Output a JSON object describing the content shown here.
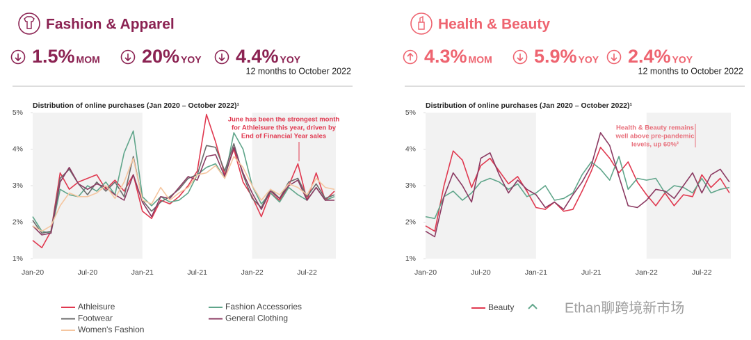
{
  "panels": [
    {
      "title": "Fashion & Apparel",
      "color": "#8b2252",
      "icon": "shirt",
      "metrics": [
        {
          "direction": "down",
          "value": "1.5%",
          "unit": "MOM"
        },
        {
          "direction": "down",
          "value": "20%",
          "unit": "YOY"
        },
        {
          "direction": "down",
          "value": "4.4%",
          "unit": "YOY"
        }
      ],
      "period": "12 months to October 2022"
    },
    {
      "title": "Health & Beauty",
      "color": "#ee6470",
      "icon": "lipstick",
      "metrics": [
        {
          "direction": "up",
          "value": "4.3%",
          "unit": "MOM"
        },
        {
          "direction": "down",
          "value": "5.9%",
          "unit": "YOY"
        },
        {
          "direction": "down",
          "value": "2.4%",
          "unit": "YOY"
        }
      ],
      "period": "12 months to October 2022"
    }
  ],
  "chart_data": [
    {
      "type": "line",
      "title": "Distribution of online purchases (Jan 2020 – October 2022)¹",
      "annotation": {
        "lines": [
          "June has been the strongest month",
          "for Athleisure this year, driven by",
          "End of Financial Year sales"
        ],
        "color": "#e0384f"
      },
      "categories": [
        "Jan-20",
        null,
        null,
        null,
        null,
        null,
        "Jul-20",
        null,
        null,
        null,
        null,
        null,
        "Jan-21",
        null,
        null,
        null,
        null,
        null,
        "Jul-21",
        null,
        null,
        null,
        null,
        null,
        "Jan-22",
        null,
        null,
        null,
        null,
        null,
        "Jul-22",
        null,
        null,
        null
      ],
      "ylim": [
        1,
        5
      ],
      "yticks": [
        {
          "value": 1,
          "label": "1%"
        },
        {
          "value": 2,
          "label": "2%"
        },
        {
          "value": 3,
          "label": "3%"
        },
        {
          "value": 4,
          "label": "4%"
        },
        {
          "value": 5,
          "label": "5%"
        }
      ],
      "series": [
        {
          "name": "Athleisure",
          "color": "#e0384f",
          "values": [
            1.5,
            1.3,
            1.75,
            3.35,
            2.9,
            3.1,
            3.2,
            3.3,
            2.9,
            3.15,
            2.85,
            3.3,
            2.3,
            2.1,
            2.6,
            2.5,
            2.7,
            3.0,
            3.4,
            4.95,
            4.2,
            3.3,
            4.0,
            3.1,
            2.7,
            2.15,
            2.8,
            2.6,
            3.0,
            3.6,
            2.6,
            3.35,
            2.6,
            2.85
          ]
        },
        {
          "name": "Fashion Accessories",
          "color": "#5fa58a",
          "values": [
            2.15,
            1.75,
            1.7,
            2.9,
            2.75,
            2.7,
            3.0,
            2.85,
            3.1,
            2.75,
            3.9,
            4.5,
            2.7,
            2.45,
            2.7,
            2.55,
            2.6,
            2.8,
            3.3,
            3.5,
            3.6,
            3.2,
            4.45,
            4.0,
            3.0,
            2.5,
            2.8,
            2.55,
            2.95,
            2.75,
            2.6,
            2.95,
            2.6,
            2.7
          ]
        },
        {
          "name": "Footwear",
          "color": "#6b6b6b",
          "values": [
            2.05,
            1.7,
            1.75,
            3.2,
            3.45,
            3.05,
            2.75,
            3.1,
            2.85,
            3.1,
            2.7,
            3.8,
            2.6,
            2.3,
            2.55,
            2.7,
            2.9,
            3.2,
            3.3,
            4.1,
            4.05,
            3.4,
            4.15,
            3.3,
            2.65,
            2.4,
            2.9,
            2.65,
            3.1,
            3.2,
            2.7,
            3.05,
            2.65,
            2.75
          ]
        },
        {
          "name": "General Clothing",
          "color": "#8b3a62",
          "values": [
            1.9,
            1.65,
            1.7,
            3.1,
            3.5,
            3.05,
            2.9,
            3.05,
            2.95,
            2.75,
            2.6,
            3.3,
            2.55,
            2.15,
            2.7,
            2.65,
            2.95,
            3.25,
            3.15,
            3.8,
            3.85,
            3.25,
            4.05,
            3.35,
            2.8,
            2.35,
            2.85,
            2.65,
            3.0,
            3.15,
            2.6,
            2.95,
            2.6,
            2.6
          ]
        },
        {
          "name": "Women's Fashion",
          "color": "#f5c6a0",
          "values": [
            1.9,
            1.75,
            1.9,
            2.45,
            2.8,
            2.7,
            2.7,
            2.8,
            3.0,
            2.65,
            3.1,
            3.75,
            2.6,
            2.5,
            2.95,
            2.6,
            2.8,
            2.95,
            3.3,
            3.35,
            3.55,
            3.2,
            3.8,
            3.5,
            3.0,
            2.6,
            2.9,
            2.75,
            3.05,
            2.95,
            2.75,
            3.2,
            2.95,
            2.9
          ]
        }
      ]
    },
    {
      "type": "line",
      "title": "Distribution of online purchases (Jan 2020 – October 2022)¹",
      "annotation": {
        "lines": [
          "Health & Beauty remains",
          "well above pre-pandemic",
          "levels, up 60%²"
        ],
        "color": "#e8707c"
      },
      "categories": [
        "Jan-20",
        null,
        null,
        null,
        null,
        null,
        "Jul-20",
        null,
        null,
        null,
        null,
        null,
        "Jan-21",
        null,
        null,
        null,
        null,
        null,
        "Jul-21",
        null,
        null,
        null,
        null,
        null,
        "Jan-22",
        null,
        null,
        null,
        null,
        null,
        "Jul-22",
        null,
        null,
        null
      ],
      "ylim": [
        1,
        5
      ],
      "yticks": [
        {
          "value": 1,
          "label": "1%"
        },
        {
          "value": 2,
          "label": "2%"
        },
        {
          "value": 3,
          "label": "3%"
        },
        {
          "value": 4,
          "label": "4%"
        },
        {
          "value": 5,
          "label": "5%"
        }
      ],
      "series": [
        {
          "name": "Beauty",
          "color": "#e0384f",
          "values": [
            1.9,
            1.75,
            3.0,
            3.95,
            3.7,
            2.95,
            3.55,
            3.75,
            3.4,
            3.05,
            3.25,
            2.85,
            2.4,
            2.35,
            2.55,
            2.3,
            2.35,
            2.85,
            3.4,
            4.05,
            3.75,
            3.35,
            3.65,
            3.1,
            2.75,
            2.45,
            2.8,
            2.45,
            2.75,
            2.7,
            3.3,
            2.95,
            3.2,
            2.8
          ]
        },
        {
          "color": "#5fa58a",
          "values": [
            2.15,
            2.1,
            2.7,
            2.85,
            2.6,
            2.8,
            3.1,
            3.2,
            3.1,
            2.9,
            3.05,
            2.7,
            2.8,
            3.0,
            2.6,
            2.65,
            2.8,
            3.3,
            3.65,
            3.45,
            3.15,
            3.8,
            2.9,
            3.2,
            3.15,
            3.2,
            2.8,
            3.0,
            2.95,
            2.8,
            3.2,
            2.8,
            2.9,
            2.95
          ]
        },
        {
          "color": "#8b3a62",
          "values": [
            1.75,
            1.6,
            2.7,
            3.35,
            3.0,
            2.55,
            3.75,
            3.9,
            3.3,
            2.8,
            3.15,
            2.9,
            2.75,
            2.4,
            2.55,
            2.35,
            2.75,
            3.1,
            3.55,
            4.45,
            4.1,
            3.25,
            2.45,
            2.4,
            2.6,
            2.9,
            2.85,
            2.65,
            3.0,
            3.35,
            2.8,
            3.3,
            3.45,
            3.1
          ]
        }
      ]
    }
  ],
  "watermark": "Ethan聊跨境新市场"
}
